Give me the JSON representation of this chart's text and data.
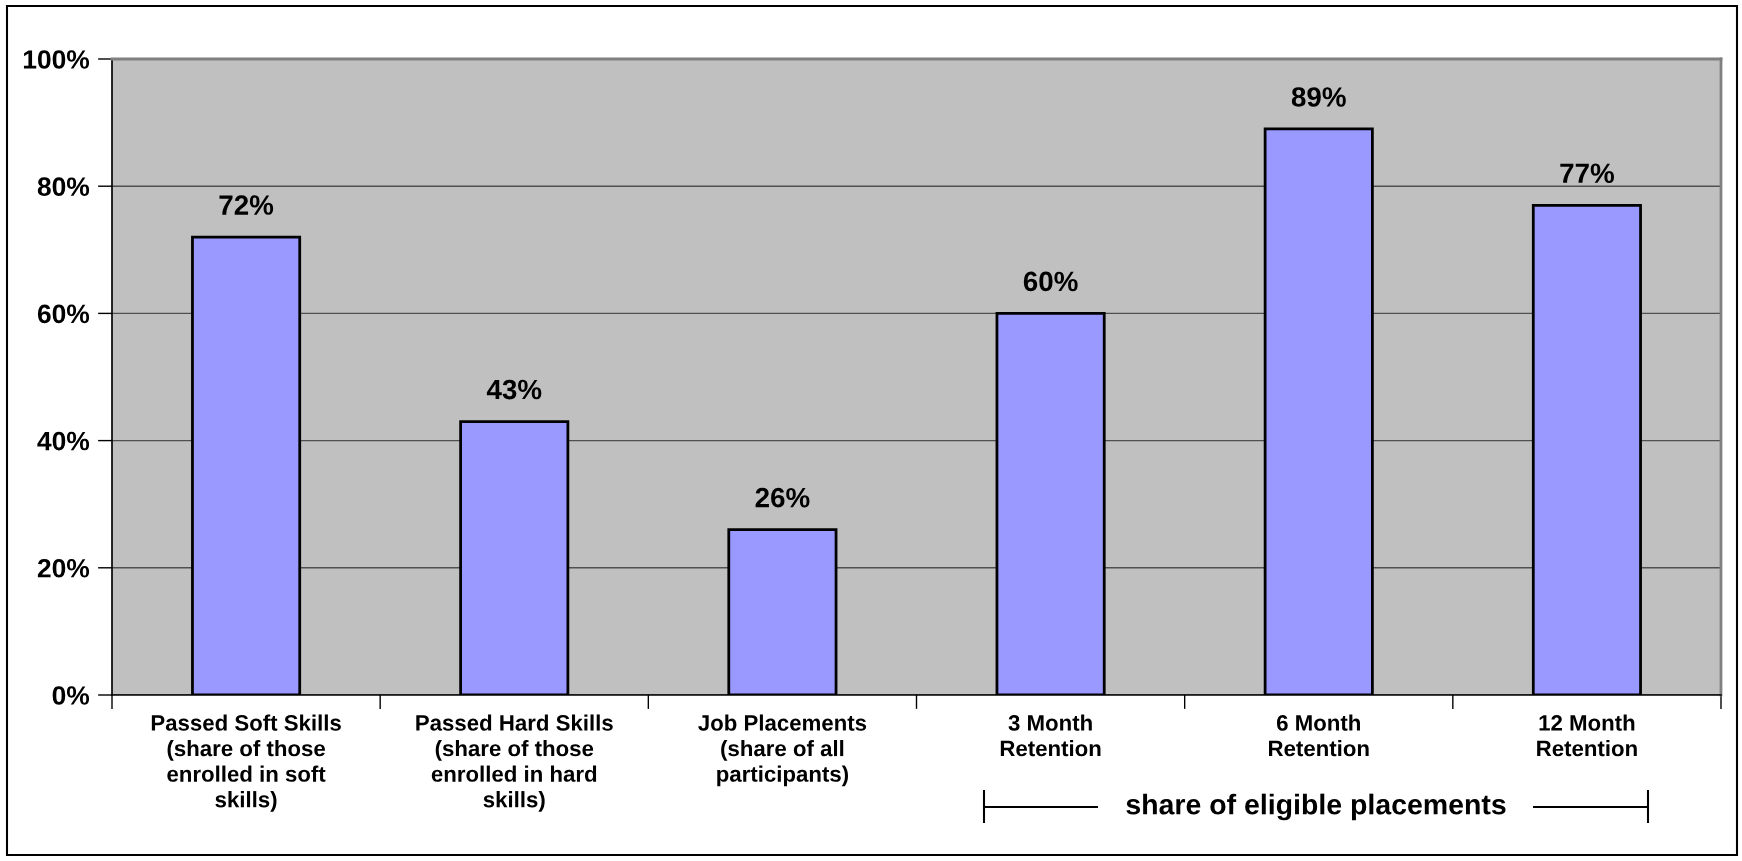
{
  "chart_data": {
    "type": "bar",
    "categories": [
      "Passed Soft Skills\n(share of those\nenrolled in soft\nskills)",
      "Passed Hard Skills\n(share of those\nenrolled in hard\nskills)",
      "Job Placements\n(share of all\nparticipants)",
      "3 Month\nRetention",
      "6 Month\nRetention",
      "12 Month\nRetention"
    ],
    "values": [
      72,
      43,
      26,
      60,
      89,
      77
    ],
    "value_labels": [
      "72%",
      "43%",
      "26%",
      "60%",
      "89%",
      "77%"
    ],
    "color": "#9999ff",
    "ylim": [
      0,
      100
    ],
    "yticks": [
      {
        "value": 0,
        "label": "0%"
      },
      {
        "value": 20,
        "label": "20%"
      },
      {
        "value": 40,
        "label": "40%"
      },
      {
        "value": 60,
        "label": "60%"
      },
      {
        "value": 80,
        "label": "80%"
      },
      {
        "value": 100,
        "label": "100%"
      }
    ],
    "grid": "y",
    "annotations": [
      "share of eligible placements"
    ]
  }
}
